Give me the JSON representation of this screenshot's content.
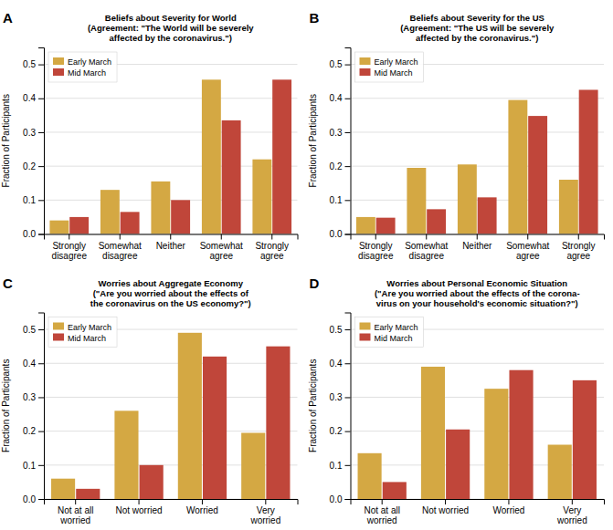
{
  "chart_data": [
    {
      "type": "bar",
      "title": "Beliefs about Severity for World\n(Agreement: \"The World will be severely\naffected by the coronavirus.\")",
      "annotations": [
        "A"
      ],
      "categories": [
        "Strongly\ndisagree",
        "Somewhat\ndisagree",
        "Neither",
        "Somewhat\nagree",
        "Strongly\nagree"
      ],
      "series": [
        {
          "name": "Early March",
          "color": "#D4A843",
          "values": [
            0.04,
            0.13,
            0.155,
            0.455,
            0.22
          ]
        },
        {
          "name": "Mid March",
          "color": "#C0463A",
          "values": [
            0.05,
            0.065,
            0.1,
            0.335,
            0.455
          ]
        }
      ],
      "ylabel": "Fraction of Participants",
      "ylim": [
        0,
        0.55
      ],
      "yticks": [
        {
          "value": 0.0,
          "label": "0.0"
        },
        0.1,
        0.2,
        0.3,
        0.4,
        0.5
      ],
      "grid": true,
      "legend": "upper left"
    },
    {
      "type": "bar",
      "title": "Beliefs about Severity for the US\n(Agreement: \"The US will be severely\naffected by the coronavirus.\")",
      "annotations": [
        "B"
      ],
      "categories": [
        "Strongly\ndisagree",
        "Somewhat\ndisagree",
        "Neither",
        "Somewhat\nagree",
        "Strongly\nagree"
      ],
      "series": [
        {
          "name": "Early March",
          "color": "#D4A843",
          "values": [
            0.05,
            0.195,
            0.205,
            0.395,
            0.16
          ]
        },
        {
          "name": "Mid March",
          "color": "#C0463A",
          "values": [
            0.048,
            0.073,
            0.108,
            0.348,
            0.425
          ]
        }
      ],
      "ylabel": "Fraction of Participants",
      "ylim": [
        0,
        0.55
      ],
      "yticks": [
        {
          "value": 0.0,
          "label": "0.0"
        },
        0.1,
        0.2,
        0.3,
        0.4,
        0.5
      ],
      "grid": true,
      "legend": "upper left"
    },
    {
      "type": "bar",
      "title": "Worries about Aggregate Economy\n(\"Are you worried about the effects of\nthe coronavirus on the US economy?\")",
      "annotations": [
        "C"
      ],
      "categories": [
        "Not at all\nworried",
        "Not worried",
        "Worried",
        "Very\nworried"
      ],
      "series": [
        {
          "name": "Early March",
          "color": "#D4A843",
          "values": [
            0.06,
            0.26,
            0.49,
            0.195
          ]
        },
        {
          "name": "Mid March",
          "color": "#C0463A",
          "values": [
            0.03,
            0.1,
            0.42,
            0.45
          ]
        }
      ],
      "ylabel": "Fraction of Participants",
      "ylim": [
        0,
        0.55
      ],
      "yticks": [
        {
          "value": 0.0,
          "label": "0.0"
        },
        0.1,
        0.2,
        0.3,
        0.4,
        0.5
      ],
      "grid": true,
      "legend": "upper left"
    },
    {
      "type": "bar",
      "title": "Worries about Personal Economic Situation\n(\"Are you worried about the effects of the corona-\nvirus on your household's economic situation?\")",
      "annotations": [
        "D"
      ],
      "categories": [
        "Not at all\nworried",
        "Not worried",
        "Worried",
        "Very\nworried"
      ],
      "series": [
        {
          "name": "Early March",
          "color": "#D4A843",
          "values": [
            0.135,
            0.39,
            0.325,
            0.16
          ]
        },
        {
          "name": "Mid March",
          "color": "#C0463A",
          "values": [
            0.05,
            0.205,
            0.38,
            0.35
          ]
        }
      ],
      "ylabel": "Fraction of Participants",
      "ylim": [
        0,
        0.55
      ],
      "yticks": [
        {
          "value": 0.0,
          "label": "0.0"
        },
        0.1,
        0.2,
        0.3,
        0.4,
        0.5
      ],
      "grid": true,
      "legend": "upper left"
    }
  ]
}
